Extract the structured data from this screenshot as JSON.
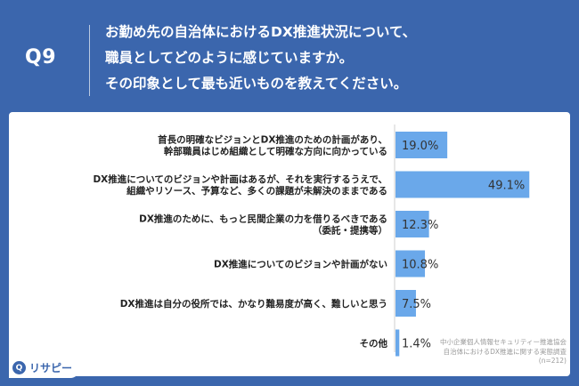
{
  "question": {
    "number": "Q9",
    "lines": [
      "お勤め先の自治体におけるDX推進状況について、",
      "職員としてどのように感じていますか。",
      "その印象として最も近いものを教えてください。"
    ]
  },
  "chart_data": {
    "type": "bar",
    "orientation": "horizontal",
    "categories": [
      [
        "首長の明確なビジョンとDX推進のための計画があり、",
        "幹部職員はじめ組織として明確な方向に向かっている"
      ],
      [
        "DX推進についてのビジョンや計画はあるが、それを実行するうえで、",
        "組織やリソース、予算など、多くの課題が未解決のままである"
      ],
      [
        "DX推進のために、もっと民間企業の力を借りるべきである",
        "（委託・提携等）"
      ],
      [
        "DX推進についてのビジョンや計画がない"
      ],
      [
        "DX推進は自分の役所では、かなり難易度が高く、難しいと思う"
      ],
      [
        "その他"
      ]
    ],
    "values": [
      19.0,
      49.1,
      12.3,
      10.8,
      7.5,
      1.4
    ],
    "value_labels": [
      "19.0%",
      "49.1%",
      "12.3%",
      "10.8%",
      "7.5%",
      "1.4%"
    ],
    "xlim": [
      0,
      50
    ],
    "bar_color": "#6aa8ea",
    "grid": false
  },
  "source": {
    "lines": [
      "中小企業個人情報セキュリティー推進協会",
      "自治体におけるDX推進に関する実態調査",
      "(n=212)"
    ]
  },
  "brand": {
    "name": "リサピー",
    "color": "#3b66ad"
  }
}
